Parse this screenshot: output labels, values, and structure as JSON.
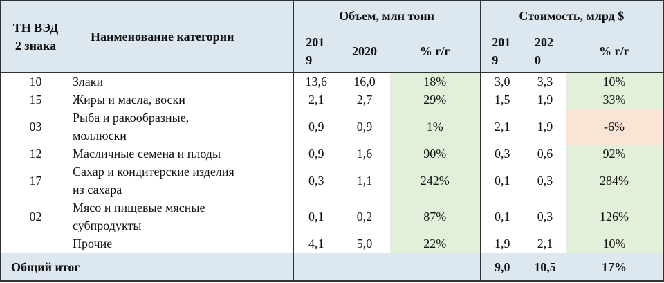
{
  "header": {
    "code": "ТН ВЭД 2 знака",
    "name": "Наименование категории",
    "volume": {
      "title": "Объем, млн тонн",
      "columns": [
        "2019",
        "2020",
        "% г/г"
      ]
    },
    "cost": {
      "title": "Стоимость, млрд $",
      "columns": [
        "2019",
        "2020",
        "% г/г"
      ]
    }
  },
  "rows": [
    [
      "10",
      [
        "Злаки"
      ],
      "13,6",
      "16,0",
      "18%",
      "3,0",
      "3,3",
      "10%"
    ],
    [
      "15",
      [
        "Жиры и масла, воски"
      ],
      "2,1",
      "2,7",
      "29%",
      "1,5",
      "1,9",
      "33%"
    ],
    [
      "03",
      [
        "Рыба и ракообразные,",
        "моллюски"
      ],
      "0,9",
      "0,9",
      "1%",
      "2,1",
      "1,9",
      "-6%"
    ],
    [
      "12",
      [
        "Масличные семена и плоды"
      ],
      "0,9",
      "1,6",
      "90%",
      "0,3",
      "0,6",
      "92%"
    ],
    [
      "17",
      [
        "Сахар и кондитерские изделия",
        "из сахара"
      ],
      "0,3",
      "1,1",
      "242%",
      "0,1",
      "0,3",
      "284%"
    ],
    [
      "02",
      [
        "Мясо и пищевые мясные",
        "субпродукты"
      ],
      "0,1",
      "0,2",
      "87%",
      "0,1",
      "0,3",
      "126%"
    ],
    [
      "",
      [
        "Прочие"
      ],
      "4,1",
      "5,0",
      "22%",
      "1,9",
      "2,1",
      "10%"
    ]
  ],
  "total": {
    "label": "Общий итог",
    "cost": [
      "9,0",
      "10,5",
      "17%"
    ]
  }
}
